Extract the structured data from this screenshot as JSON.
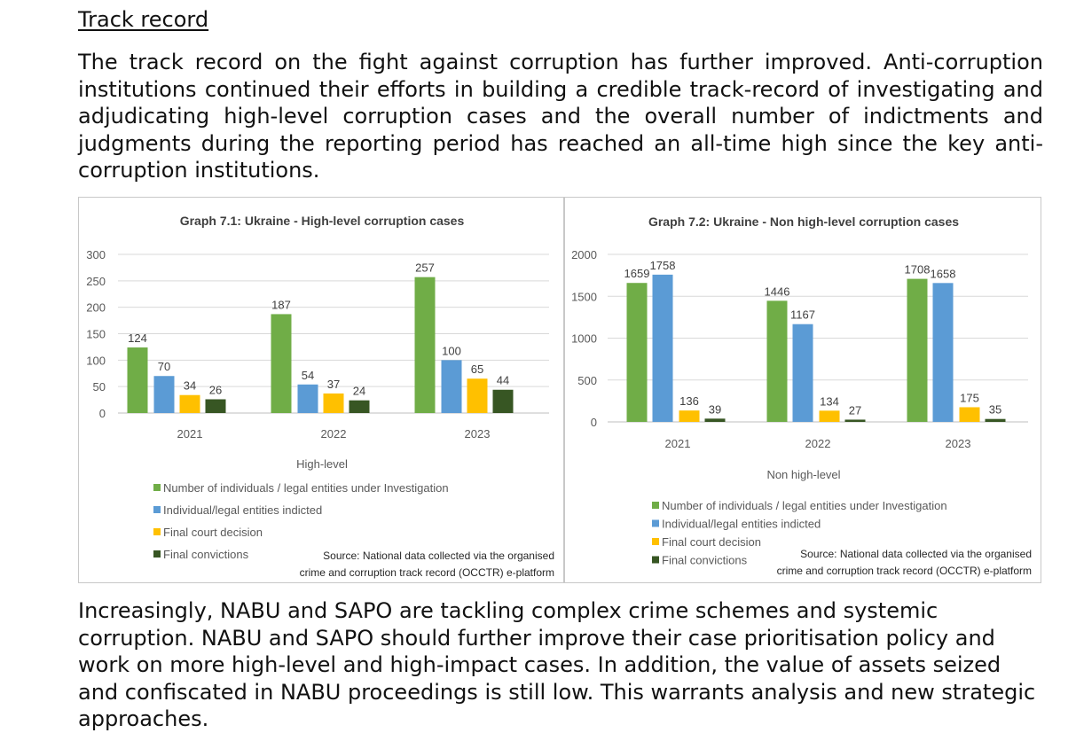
{
  "heading": "Track record",
  "para1": "The track record on the fight against corruption has further improved. Anti-corruption institutions continued their efforts in building a credible track-record of investigating and adjudicating high-level corruption cases and the overall number of indictments and judgments during the reporting period has reached an all-time high since the key anti-corruption institutions.",
  "para2": "Increasingly, NABU and SAPO are tackling complex crime schemes and systemic corruption. NABU and SAPO should further improve their case prioritisation policy and work on more high-level and high-impact cases. In addition, the value of assets seized and confiscated in NABU proceedings is still low. This warrants analysis and new strategic approaches.",
  "chart_data": [
    {
      "type": "bar",
      "title": "Graph 7.1: Ukraine - High-level corruption cases",
      "xlabel": "High-level",
      "ylabel": "",
      "categories": [
        "2021",
        "2022",
        "2023"
      ],
      "ylim": [
        0,
        300
      ],
      "yticks": [
        0,
        50,
        100,
        150,
        200,
        250,
        300
      ],
      "grid": true,
      "legend": "bottom-left",
      "series": [
        {
          "name": "Number of individuals / legal entities under Investigation",
          "color": "#70ad47",
          "values": [
            124,
            187,
            257
          ]
        },
        {
          "name": "Individual/legal entities indicted",
          "color": "#5b9bd5",
          "values": [
            70,
            54,
            100
          ]
        },
        {
          "name": "Final court decision",
          "color": "#ffc000",
          "values": [
            34,
            37,
            65
          ]
        },
        {
          "name": "Final convictions",
          "color": "#375623",
          "values": [
            26,
            24,
            44
          ]
        }
      ],
      "source": [
        "Source: National data collected via the organised",
        "crime and corruption track record (OCCTR) e-platform"
      ]
    },
    {
      "type": "bar",
      "title": "Graph 7.2: Ukraine - Non high-level corruption cases",
      "xlabel": "Non high-level",
      "ylabel": "",
      "categories": [
        "2021",
        "2022",
        "2023"
      ],
      "ylim": [
        0,
        2000
      ],
      "yticks": [
        0,
        500,
        1000,
        1500,
        2000
      ],
      "grid": true,
      "legend": "bottom-left",
      "series": [
        {
          "name": "Number of individuals / legal entities under Investigation",
          "color": "#70ad47",
          "values": [
            1659,
            1446,
            1708
          ]
        },
        {
          "name": "Individual/legal entities indicted",
          "color": "#5b9bd5",
          "values": [
            1758,
            1167,
            1658
          ]
        },
        {
          "name": "Final court decision",
          "color": "#ffc000",
          "values": [
            136,
            134,
            175
          ]
        },
        {
          "name": "Final convictions",
          "color": "#375623",
          "values": [
            39,
            27,
            35
          ]
        }
      ],
      "source": [
        "Source: National data collected via the organised",
        "crime and corruption track record (OCCTR) e-platform"
      ]
    }
  ]
}
